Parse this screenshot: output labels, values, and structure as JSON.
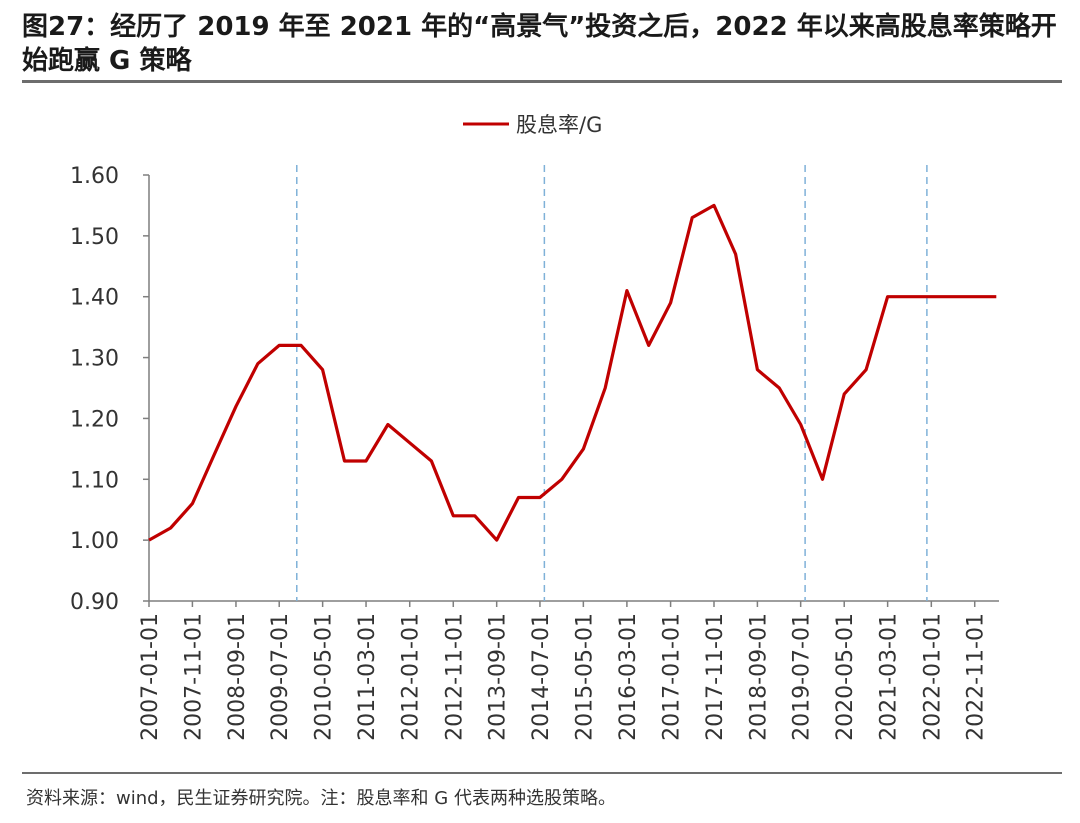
{
  "figure": {
    "title": "图27：经历了 2019 年至 2021 年的“高景气”投资之后，2022 年以来高股息率策略开始跑赢 G 策略",
    "source": "资料来源：wind，民生证券研究院。注：股息率和 G 代表两种选股策略。"
  },
  "colors": {
    "line": "#c00000",
    "vline": "#7fb1d8",
    "axis": "#7f7f7f",
    "rule": "#6d6d6d"
  },
  "chart_data": {
    "type": "line",
    "title": "",
    "xlabel": "",
    "ylabel": "",
    "ylim": [
      0.9,
      1.6
    ],
    "yticks": [
      "0.90",
      "1.00",
      "1.10",
      "1.20",
      "1.30",
      "1.40",
      "1.50",
      "1.60"
    ],
    "xticks": [
      "2007-01-01",
      "2007-11-01",
      "2008-09-01",
      "2009-07-01",
      "2010-05-01",
      "2011-03-01",
      "2012-01-01",
      "2012-11-01",
      "2013-09-01",
      "2014-07-01",
      "2015-05-01",
      "2016-03-01",
      "2017-01-01",
      "2017-11-01",
      "2018-09-01",
      "2019-07-01",
      "2020-05-01",
      "2021-03-01",
      "2022-01-01",
      "2022-11-01"
    ],
    "legend": {
      "position": "top-center"
    },
    "grid": false,
    "reference_lines": [
      "2009-11-01",
      "2014-08-01",
      "2019-08-01",
      "2021-12-01"
    ],
    "series": [
      {
        "name": "股息率/G",
        "x": [
          "2007-01-01",
          "2007-06-01",
          "2007-11-01",
          "2008-04-01",
          "2008-09-01",
          "2009-02-01",
          "2009-07-01",
          "2009-12-01",
          "2010-05-01",
          "2010-10-01",
          "2011-03-01",
          "2011-08-01",
          "2012-01-01",
          "2012-06-01",
          "2012-11-01",
          "2013-04-01",
          "2013-09-01",
          "2014-02-01",
          "2014-07-01",
          "2014-12-01",
          "2015-05-01",
          "2015-10-01",
          "2016-03-01",
          "2016-08-01",
          "2017-01-01",
          "2017-06-01",
          "2017-11-01",
          "2018-04-01",
          "2018-09-01",
          "2019-02-01",
          "2019-07-01",
          "2019-12-01",
          "2020-05-01",
          "2020-10-01",
          "2021-03-01",
          "2021-08-01",
          "2022-01-01",
          "2022-06-01",
          "2022-11-01",
          "2023-04-01"
        ],
        "values": [
          1.0,
          1.02,
          1.06,
          1.14,
          1.22,
          1.29,
          1.32,
          1.32,
          1.28,
          1.13,
          1.13,
          1.19,
          1.16,
          1.13,
          1.04,
          1.04,
          1.0,
          1.07,
          1.07,
          1.1,
          1.15,
          1.25,
          1.41,
          1.32,
          1.39,
          1.53,
          1.55,
          1.47,
          1.28,
          1.25,
          1.19,
          1.1,
          1.24,
          1.28,
          1.4,
          1.4,
          1.4,
          1.4,
          1.4,
          1.4
        ]
      }
    ]
  }
}
